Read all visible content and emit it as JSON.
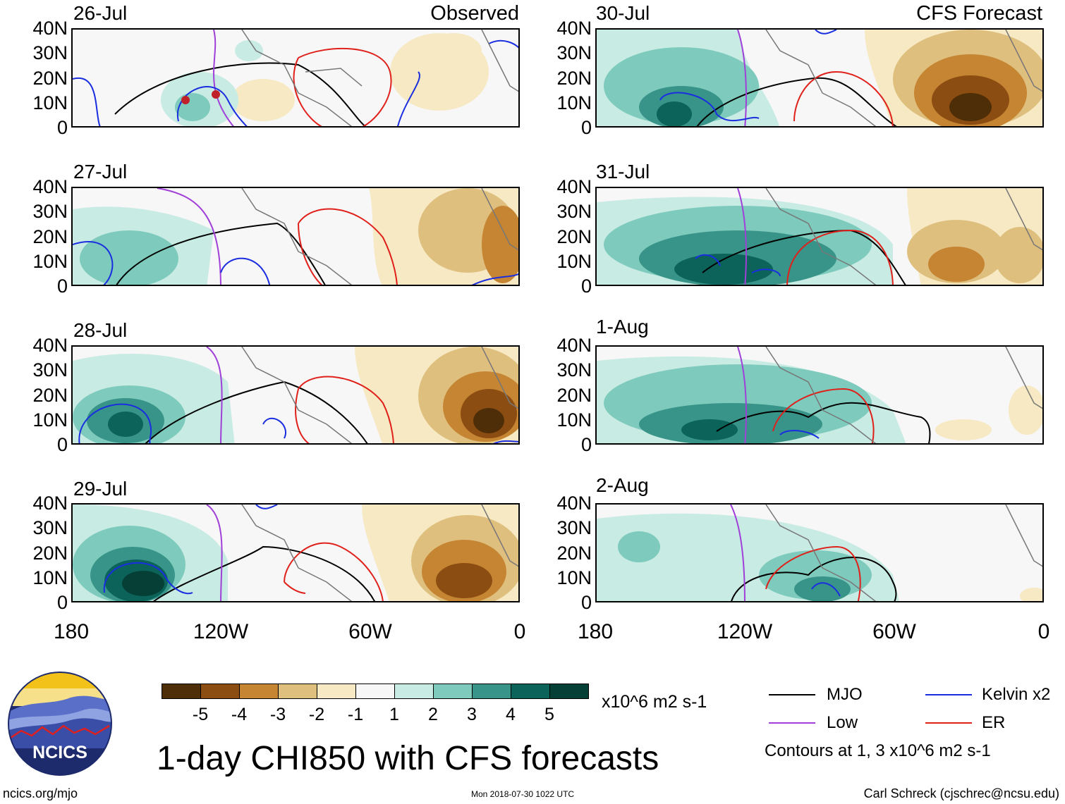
{
  "left_panels": [
    {
      "date": "26-Jul",
      "title": "Observed"
    },
    {
      "date": "27-Jul",
      "title": ""
    },
    {
      "date": "28-Jul",
      "title": ""
    },
    {
      "date": "29-Jul",
      "title": ""
    }
  ],
  "right_panels": [
    {
      "date": "30-Jul",
      "title": "CFS Forecast"
    },
    {
      "date": "31-Jul",
      "title": ""
    },
    {
      "date": "1-Aug",
      "title": ""
    },
    {
      "date": "2-Aug",
      "title": ""
    }
  ],
  "y_ticks": [
    "40N",
    "30N",
    "20N",
    "10N",
    "0"
  ],
  "x_ticks": [
    "180",
    "120W",
    "60W",
    "0"
  ],
  "colorbar": {
    "colors": [
      "#4e2e08",
      "#8b4d12",
      "#c68533",
      "#dfbf7e",
      "#f6e9c4",
      "#f7f7f7",
      "#c8ebe3",
      "#7ecbbd",
      "#389488",
      "#0c6359",
      "#053f35"
    ],
    "ticks": [
      "-5",
      "-4",
      "-3",
      "-2",
      "-1",
      "1",
      "2",
      "3",
      "4",
      "5"
    ],
    "units": "x10^6 m2 s-1"
  },
  "main_title": "1-day CHI850 with CFS forecasts",
  "legend": {
    "items": [
      {
        "label": "MJO",
        "color": "#000000"
      },
      {
        "label": "Kelvin x2",
        "color": "#1a2ee0"
      },
      {
        "label": "Low",
        "color": "#a040d8"
      },
      {
        "label": "ER",
        "color": "#e0201a"
      }
    ],
    "note": "Contours at 1, 3 x10^6 m2 s-1"
  },
  "logo": {
    "text": "NCICS"
  },
  "footer": {
    "url": "ncics.org/mjo",
    "timestamp": "Mon 2018-07-30 1022 UTC",
    "author": "Carl Schreck (cjschrec@ncsu.edu)"
  }
}
